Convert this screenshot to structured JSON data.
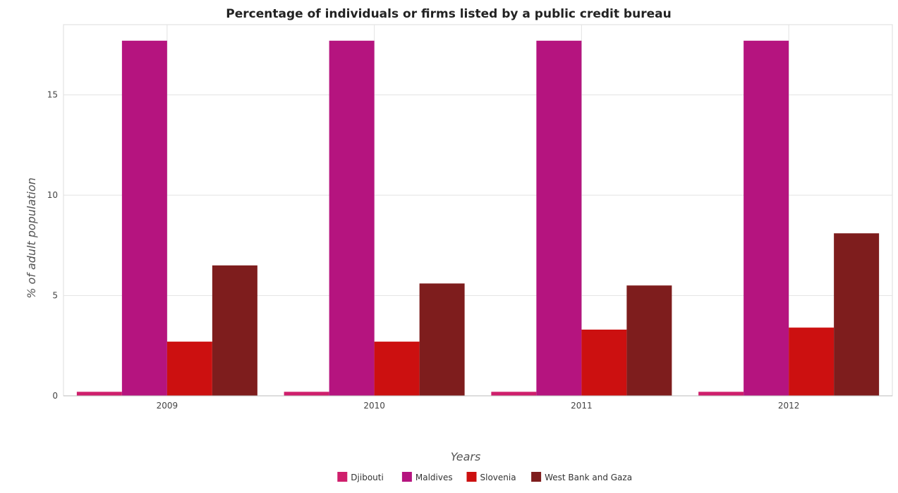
{
  "chart_data": {
    "type": "bar",
    "title": "Percentage of individuals or firms listed by a public credit bureau",
    "xlabel": "Years",
    "ylabel": "% of adult population",
    "categories": [
      "2009",
      "2010",
      "2011",
      "2012"
    ],
    "series": [
      {
        "name": "Djibouti",
        "color": "#cf1f6c",
        "values": [
          0.2,
          0.2,
          0.2,
          0.2
        ]
      },
      {
        "name": "Maldives",
        "color": "#b5147f",
        "values": [
          17.7,
          17.7,
          17.7,
          17.7
        ]
      },
      {
        "name": "Slovenia",
        "color": "#cc1010",
        "values": [
          2.7,
          2.7,
          3.3,
          3.4
        ]
      },
      {
        "name": "West Bank and Gaza",
        "color": "#7e1d1d",
        "values": [
          6.5,
          5.6,
          5.5,
          8.1
        ]
      }
    ],
    "ylim": [
      0,
      18.5
    ],
    "yticks": [
      0,
      5,
      10,
      15
    ],
    "grid": true,
    "legend_position": "bottom-center"
  }
}
